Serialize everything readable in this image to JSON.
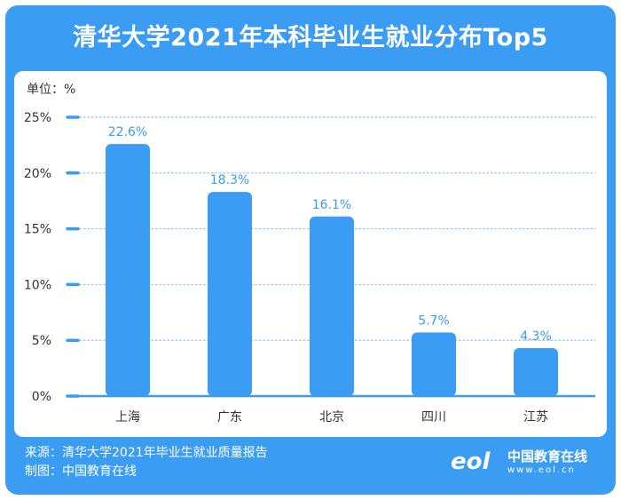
{
  "header": {
    "title": "清华大学2021年本科毕业生就业分布Top5"
  },
  "chart_data": {
    "type": "bar",
    "title": "清华大学2021年本科毕业生就业分布Top5",
    "unit_label": "单位：%",
    "categories": [
      "上海",
      "广东",
      "北京",
      "四川",
      "江苏"
    ],
    "values": [
      22.6,
      18.3,
      16.1,
      5.7,
      4.3
    ],
    "value_labels": [
      "22.6%",
      "18.3%",
      "16.1%",
      "5.7%",
      "4.3%"
    ],
    "yticks": [
      "0%",
      "5%",
      "10%",
      "15%",
      "20%",
      "25%"
    ],
    "ylim": [
      0,
      25
    ],
    "grid": true,
    "bar_color": "#3a9cf2"
  },
  "footer": {
    "source": "来源：清华大学2021年毕业生就业质量报告",
    "credit": "制图：中国教育在线"
  },
  "brand": {
    "name": "中国教育在线",
    "url": "www.eol.cn",
    "logo_text": "eol"
  },
  "colors": {
    "accent": "#3a9cf2",
    "grid": "#9fc9f0",
    "label": "#3a9cf2",
    "text": "#333333"
  }
}
